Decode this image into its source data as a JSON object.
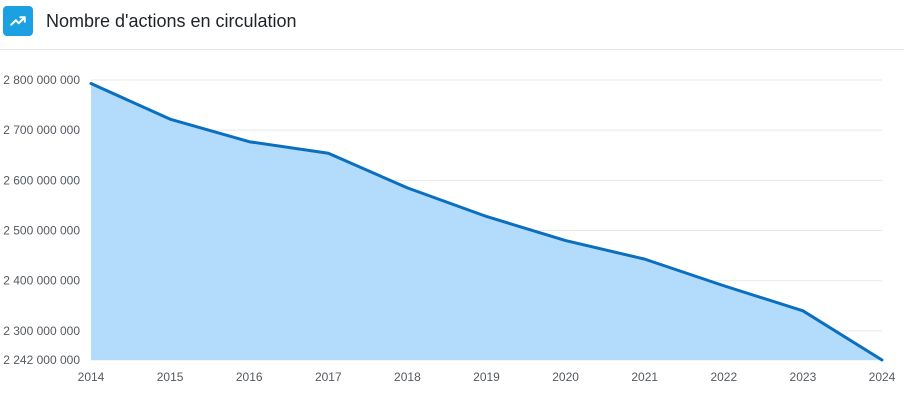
{
  "header": {
    "icon": "trending-up-icon",
    "title": "Nombre d'actions en circulation"
  },
  "chart_data": {
    "type": "area",
    "title": "Nombre d'actions en circulation",
    "xlabel": "",
    "ylabel": "",
    "x": [
      "2014",
      "2015",
      "2016",
      "2017",
      "2018",
      "2019",
      "2020",
      "2021",
      "2022",
      "2023",
      "2024"
    ],
    "series": [
      {
        "values": [
          2793000000,
          2722000000,
          2677000000,
          2654000000,
          2585000000,
          2528000000,
          2480000000,
          2443000000,
          2390000000,
          2340000000,
          2242000000
        ]
      }
    ],
    "ylim": [
      2242000000,
      2800000000
    ],
    "yticks": [
      2242000000,
      2300000000,
      2400000000,
      2500000000,
      2600000000,
      2700000000,
      2800000000
    ],
    "ytick_labels": [
      "2 242 000 000",
      "2 300 000 000",
      "2 400 000 000",
      "2 500 000 000",
      "2 600 000 000",
      "2 700 000 000",
      "2 800 000 000"
    ],
    "grid": true,
    "legend": "none",
    "colors": {
      "line": "#0b6fbf",
      "fill": "#b3dbfc",
      "grid": "#e6e8eb",
      "icon_bg": "#1ba1e2"
    }
  }
}
